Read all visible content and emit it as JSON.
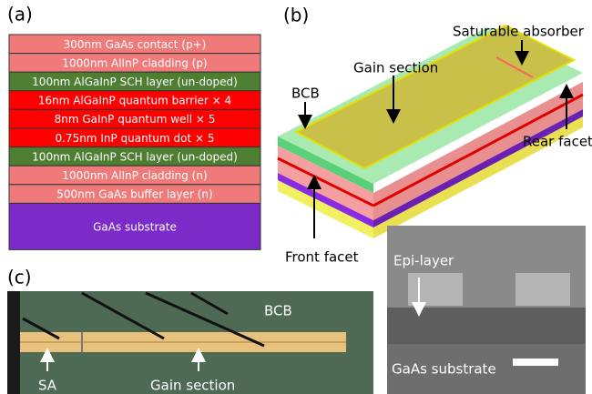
{
  "panel_a": {
    "label": "(a)",
    "layers": [
      {
        "text": "300nm GaAs contact (p+)",
        "color": "#f07a7a",
        "text_color": "#ffffff"
      },
      {
        "text": "1000nm AlInP cladding (p)",
        "color": "#f07a7a",
        "text_color": "#ffffff"
      },
      {
        "text": "100nm AlGaInP SCH layer (un-doped)",
        "color": "#4d7e31",
        "text_color": "#ffffff"
      },
      {
        "text": "16nm AlGaInP quantum barrier × 4",
        "color": "#ff0000",
        "text_color": "#ffffff"
      },
      {
        "text": "8nm GaInP quantum well × 5",
        "color": "#ff0000",
        "text_color": "#ffffff"
      },
      {
        "text": "0.75nm InP quantum dot × 5",
        "color": "#ff0000",
        "text_color": "#ffffff"
      },
      {
        "text": "100nm AlGaInP SCH layer (un-doped)",
        "color": "#4d7e31",
        "text_color": "#ffffff"
      },
      {
        "text": "1000nm AlInP cladding (n)",
        "color": "#f07a7a",
        "text_color": "#ffffff"
      },
      {
        "text": "500nm GaAs buffer layer (n)",
        "color": "#f07a7a",
        "text_color": "#ffffff"
      },
      {
        "text": "GaAs substrate",
        "color": "#7c2bc8",
        "text_color": "#ffffff"
      }
    ]
  },
  "panel_b": {
    "label": "(b)",
    "saturable_absorber": "Saturable absorber",
    "gain_section": "Gain section",
    "bcb": "BCB",
    "rear_facet": "Rear facet",
    "front_facet": "Front facet"
  },
  "panel_c": {
    "label": "(c)",
    "bcb": "BCB",
    "sa": "SA",
    "gain_section": "Gain section"
  },
  "panel_sem": {
    "epi_layer": "Epi-layer",
    "substrate": "GaAs substrate"
  }
}
